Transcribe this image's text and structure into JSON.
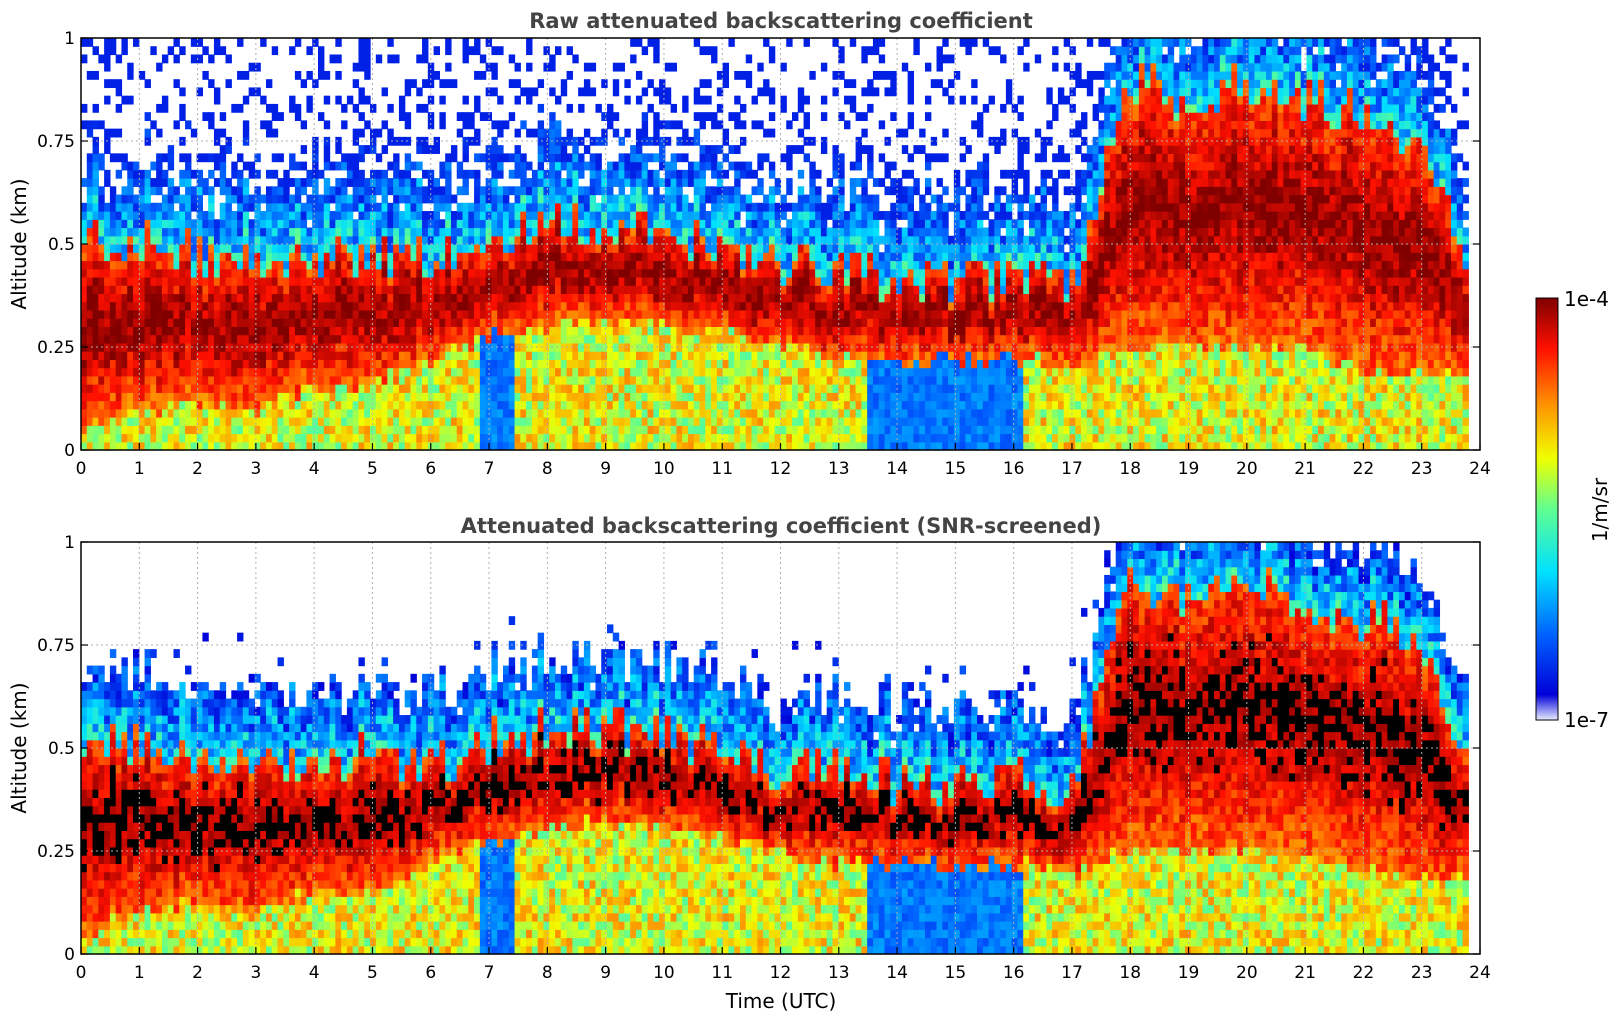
{
  "chart_data": [
    {
      "type": "heatmap",
      "title": "Raw attenuated backscattering coefficient",
      "xlabel": "",
      "ylabel": "Altitude (km)",
      "xlim": [
        0,
        24
      ],
      "ylim": [
        0,
        1
      ],
      "xticks": [
        "0",
        "1",
        "2",
        "3",
        "4",
        "5",
        "6",
        "7",
        "8",
        "9",
        "10",
        "11",
        "12",
        "13",
        "14",
        "15",
        "16",
        "17",
        "18",
        "19",
        "20",
        "21",
        "22",
        "23",
        "24"
      ],
      "yticks": [
        "0",
        "0.25",
        "0.5",
        "0.75",
        "1"
      ],
      "grid": true,
      "screened": false
    },
    {
      "type": "heatmap",
      "title": "Attenuated backscattering coefficient (SNR-screened)",
      "xlabel": "Time (UTC)",
      "ylabel": "Altitude (km)",
      "xlim": [
        0,
        24
      ],
      "ylim": [
        0,
        1
      ],
      "xticks": [
        "0",
        "1",
        "2",
        "3",
        "4",
        "5",
        "6",
        "7",
        "8",
        "9",
        "10",
        "11",
        "12",
        "13",
        "14",
        "15",
        "16",
        "17",
        "18",
        "19",
        "20",
        "21",
        "22",
        "23",
        "24"
      ],
      "yticks": [
        "0",
        "0.25",
        "0.5",
        "0.75",
        "1"
      ],
      "grid": true,
      "screened": true
    }
  ],
  "colorbar": {
    "label": "1/m/sr",
    "max_label": "1e-4",
    "min_label": "1e-7",
    "scale": "log",
    "range": [
      1e-07,
      0.0001
    ],
    "colormap": "jet"
  },
  "layer_profile": {
    "hours": [
      0,
      1,
      2,
      3,
      4,
      5,
      6,
      7,
      8,
      9,
      10,
      11,
      12,
      13,
      14,
      15,
      16,
      17,
      18,
      19,
      20,
      21,
      22,
      23,
      24
    ],
    "layer_top_km": [
      0.52,
      0.5,
      0.48,
      0.46,
      0.47,
      0.48,
      0.46,
      0.52,
      0.55,
      0.55,
      0.54,
      0.5,
      0.45,
      0.45,
      0.42,
      0.41,
      0.42,
      0.4,
      0.9,
      0.85,
      0.9,
      0.85,
      0.82,
      0.75,
      0.4
    ],
    "layer_base_km": [
      0.05,
      0.1,
      0.12,
      0.1,
      0.15,
      0.15,
      0.22,
      0.28,
      0.3,
      0.32,
      0.3,
      0.28,
      0.25,
      0.22,
      0.22,
      0.22,
      0.22,
      0.2,
      0.25,
      0.25,
      0.25,
      0.25,
      0.2,
      0.18,
      0.18
    ]
  }
}
